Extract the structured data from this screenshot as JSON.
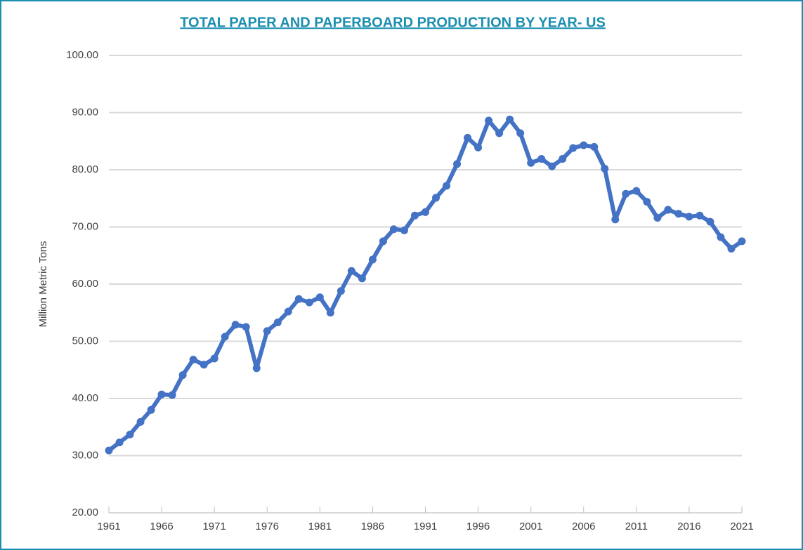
{
  "chart_data": {
    "type": "line",
    "title": "TOTAL PAPER AND PAPERBOARD PRODUCTION BY YEAR- US",
    "y_label": "Million Metric Tons",
    "x": [
      1961,
      1962,
      1963,
      1964,
      1965,
      1966,
      1967,
      1968,
      1969,
      1970,
      1971,
      1972,
      1973,
      1974,
      1975,
      1976,
      1977,
      1978,
      1979,
      1980,
      1981,
      1982,
      1983,
      1984,
      1985,
      1986,
      1987,
      1988,
      1989,
      1990,
      1991,
      1992,
      1993,
      1994,
      1995,
      1996,
      1997,
      1998,
      1999,
      2000,
      2001,
      2002,
      2003,
      2004,
      2005,
      2006,
      2007,
      2008,
      2009,
      2010,
      2011,
      2012,
      2013,
      2014,
      2015,
      2016,
      2017,
      2018,
      2019,
      2020,
      2021
    ],
    "series": [
      {
        "name": "Million Metric Tons",
        "color": "#4472c4",
        "values": [
          30.9,
          32.3,
          33.7,
          35.9,
          38.0,
          40.7,
          40.6,
          44.1,
          46.8,
          45.9,
          47.0,
          50.8,
          52.9,
          52.5,
          45.3,
          51.8,
          53.3,
          55.2,
          57.4,
          56.8,
          57.7,
          55.0,
          58.8,
          62.3,
          61.0,
          64.3,
          67.5,
          69.6,
          69.4,
          72.0,
          72.6,
          75.1,
          77.2,
          81.0,
          85.6,
          83.9,
          88.6,
          86.4,
          88.8,
          86.4,
          81.2,
          81.9,
          80.6,
          81.9,
          83.8,
          84.3,
          84.0,
          80.2,
          71.3,
          75.8,
          76.3,
          74.4,
          71.6,
          73.0,
          72.3,
          71.8,
          72.0,
          70.9,
          68.2,
          66.2,
          67.5
        ]
      }
    ],
    "xlim": [
      1961,
      2021
    ],
    "xticks": [
      1961,
      1966,
      1971,
      1976,
      1981,
      1986,
      1991,
      1996,
      2001,
      2006,
      2011,
      2016,
      2021
    ],
    "ylim": [
      20,
      100
    ],
    "yticks": [
      {
        "value": 20,
        "label": "20.00"
      },
      {
        "value": 30,
        "label": "30.00"
      },
      {
        "value": 40,
        "label": "40.00"
      },
      {
        "value": 50,
        "label": "50.00"
      },
      {
        "value": 60,
        "label": "60.00"
      },
      {
        "value": 70,
        "label": "70.00"
      },
      {
        "value": 80,
        "label": "80.00"
      },
      {
        "value": 90,
        "label": "90.00"
      },
      {
        "value": 100,
        "label": "100.00"
      }
    ],
    "grid": true
  }
}
